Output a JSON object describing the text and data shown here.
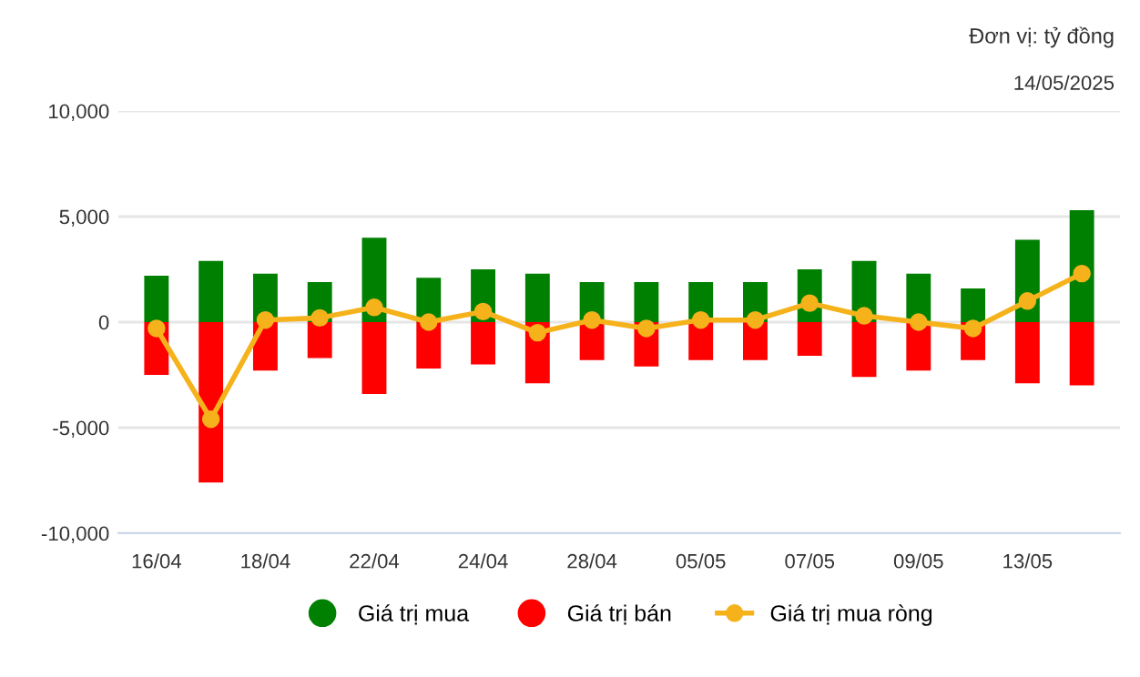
{
  "chart_data": {
    "type": "bar",
    "stacked": true,
    "categories": [
      "16/04",
      null,
      "18/04",
      null,
      "22/04",
      null,
      "24/04",
      null,
      "28/04",
      null,
      "05/05",
      null,
      "07/05",
      null,
      "09/05",
      null,
      "13/05",
      null
    ],
    "series": [
      {
        "name": "Giá trị mua",
        "color": "#008000",
        "values": [
          2200,
          2900,
          2300,
          1900,
          4000,
          2100,
          2500,
          2300,
          1900,
          1900,
          1900,
          1900,
          2500,
          2900,
          2300,
          1600,
          3900,
          5300
        ]
      },
      {
        "name": "Giá trị bán",
        "color": "#ff0000",
        "values": [
          -2500,
          -7600,
          -2300,
          -1700,
          -3400,
          -2200,
          -2000,
          -2900,
          -1800,
          -2100,
          -1800,
          -1800,
          -1600,
          -2600,
          -2300,
          -1800,
          -2900,
          -3000
        ]
      },
      {
        "name": "Giá trị mua ròng",
        "type": "line",
        "color": "#f5b21b",
        "marker": "circle",
        "values": [
          -300,
          -4600,
          100,
          200,
          700,
          0,
          500,
          -500,
          100,
          -300,
          100,
          100,
          900,
          300,
          0,
          -300,
          1000,
          2300
        ]
      }
    ],
    "ylim": [
      -10000,
      10000
    ],
    "yticks": [
      {
        "value": -10000,
        "label": "-10,000"
      },
      {
        "value": -5000,
        "label": "-5,000"
      },
      0,
      {
        "value": 5000,
        "label": "5,000"
      },
      {
        "value": 10000,
        "label": "10,000"
      }
    ],
    "grid": "y",
    "legend": "bottom",
    "annotations": [
      "Đơn vị: tỷ đồng",
      "14/05/2025"
    ]
  }
}
